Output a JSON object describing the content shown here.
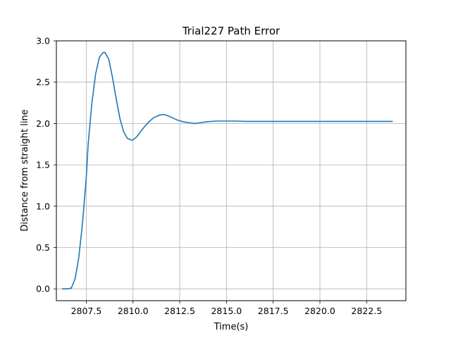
{
  "chart_data": {
    "type": "line",
    "title": "Trial227 Path Error",
    "xlabel": "Time(s)",
    "ylabel": "Distance from straight line",
    "xlim": [
      2805.9,
      2824.6
    ],
    "ylim": [
      -0.143,
      3.0
    ],
    "grid": true,
    "x_ticks": [
      2807.5,
      2810.0,
      2812.5,
      2815.0,
      2817.5,
      2820.0,
      2822.5
    ],
    "x_tick_labels": [
      "2807.5",
      "2810.0",
      "2812.5",
      "2815.0",
      "2817.5",
      "2820.0",
      "2822.5"
    ],
    "y_ticks": [
      0.0,
      0.5,
      1.0,
      1.5,
      2.0,
      2.5,
      3.0
    ],
    "y_tick_labels": [
      "0.0",
      "0.5",
      "1.0",
      "1.5",
      "2.0",
      "2.5",
      "3.0"
    ],
    "line_color": "#1f77b4",
    "series": [
      {
        "x": [
          2806.2,
          2806.5,
          2806.7,
          2806.9,
          2807.1,
          2807.3,
          2807.5,
          2807.6,
          2807.8,
          2808.0,
          2808.2,
          2808.4,
          2808.5,
          2808.7,
          2808.9,
          2809.1,
          2809.3,
          2809.5,
          2809.7,
          2809.9,
          2810.0,
          2810.2,
          2810.5,
          2810.8,
          2811.1,
          2811.4,
          2811.6,
          2811.8,
          2812.1,
          2812.4,
          2812.7,
          2813.0,
          2813.3,
          2813.6,
          2813.9,
          2814.2,
          2814.5,
          2815.0,
          2815.5,
          2816.0,
          2818.0,
          2820.0,
          2822.0,
          2823.9
        ],
        "y": [
          0.0,
          0.0,
          0.01,
          0.12,
          0.38,
          0.8,
          1.35,
          1.75,
          2.25,
          2.6,
          2.8,
          2.86,
          2.86,
          2.78,
          2.56,
          2.3,
          2.06,
          1.9,
          1.82,
          1.8,
          1.8,
          1.84,
          1.93,
          2.01,
          2.07,
          2.1,
          2.11,
          2.1,
          2.07,
          2.04,
          2.02,
          2.01,
          2.0,
          2.01,
          2.02,
          2.025,
          2.03,
          2.03,
          2.03,
          2.025,
          2.025,
          2.025,
          2.025,
          2.025
        ]
      }
    ]
  }
}
